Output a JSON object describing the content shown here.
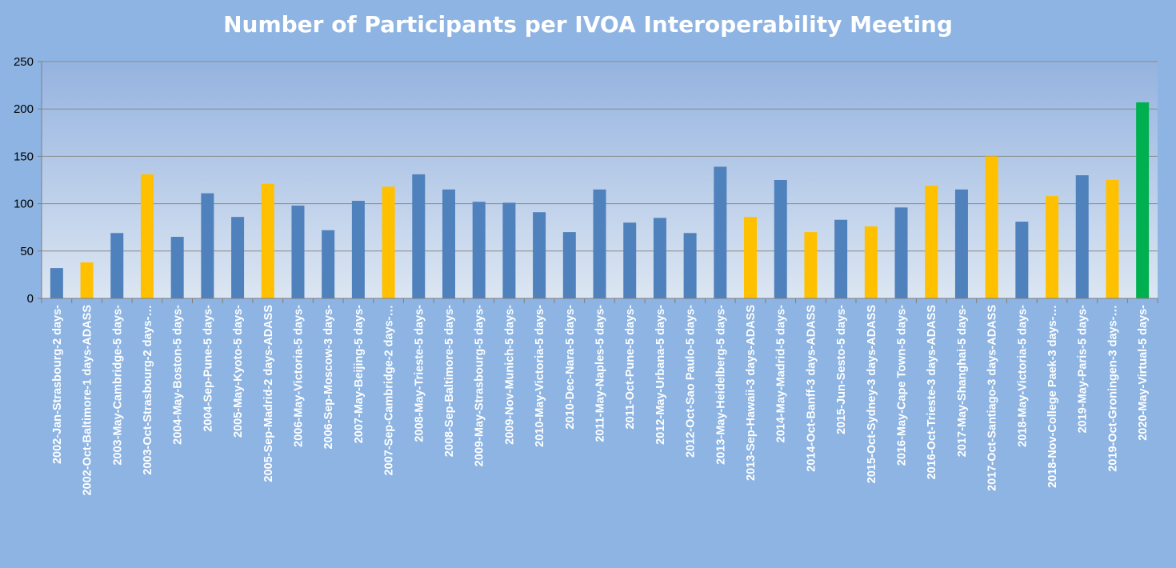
{
  "chart_data": {
    "type": "bar",
    "title": "Number of Participants per IVOA Interoperability Meeting",
    "xlabel": "",
    "ylabel": "",
    "ylim": [
      0,
      250
    ],
    "yticks": [
      0,
      50,
      100,
      150,
      200,
      250
    ],
    "grid": true,
    "legend": "none",
    "categories": [
      "2002-Jan-Strasbourg-2 days-",
      "2002-Oct-Baltimore-1 days-ADASS",
      "2003-May-Cambridge-5 days-",
      "2003-Oct-Strasbourg-2 days-…",
      "2004-May-Boston-5 days-",
      "2004-Sep-Pune-5 days-",
      "2005-May-Kyoto-5 days-",
      "2005-Sep-Madrid-2 days-ADASS",
      "2006-May-Victoria-5 days-",
      "2006-Sep-Moscow-3 days-",
      "2007-May-Beijing-5 days-",
      "2007-Sep-Cambridge-2 days-…",
      "2008-May-Trieste-5 days-",
      "2008-Sep-Baltimore-5 days-",
      "2009-May-Strasbourg-5 days-",
      "2009-Nov-Munich-5 days-",
      "2010-May-Victoria-5 days-",
      "2010-Dec-Nara-5 days-",
      "2011-May-Naples-5 days-",
      "2011-Oct-Pune-5 days-",
      "2012-May-Urbana-5 days-",
      "2012-Oct-Sao Paulo-5 days-",
      "2013-May-Heidelberg-5 days-",
      "2013-Sep-Hawaii-3 days-ADASS",
      "2014-May-Madrid-5 days-",
      "2014-Oct-Banff-3 days-ADASS",
      "2015-Jun-Sesto-5 days-",
      "2015-Oct-Sydney-3 days-ADASS",
      "2016-May-Cape Town-5 days-",
      "2016-Oct-Trieste-3 days-ADASS",
      "2017-May-Shanghai-5 days-",
      "2017-Oct-Santiago-3 days-ADASS",
      "2018-May-Victoria-5 days-",
      "2018-Nov-College Paek-3 days-…",
      "2019-May-Paris-5 days-",
      "2019-Oct-Groningen-3 days-…",
      "2020-May-Virtual-5 days-"
    ],
    "values": [
      32,
      38,
      69,
      131,
      65,
      111,
      86,
      121,
      98,
      72,
      103,
      118,
      131,
      115,
      102,
      101,
      91,
      70,
      115,
      80,
      85,
      69,
      139,
      86,
      125,
      70,
      83,
      76,
      96,
      119,
      115,
      150,
      81,
      108,
      130,
      125,
      207
    ],
    "bar_colors": [
      "#4f81bd",
      "#ffc000",
      "#4f81bd",
      "#ffc000",
      "#4f81bd",
      "#4f81bd",
      "#4f81bd",
      "#ffc000",
      "#4f81bd",
      "#4f81bd",
      "#4f81bd",
      "#ffc000",
      "#4f81bd",
      "#4f81bd",
      "#4f81bd",
      "#4f81bd",
      "#4f81bd",
      "#4f81bd",
      "#4f81bd",
      "#4f81bd",
      "#4f81bd",
      "#4f81bd",
      "#4f81bd",
      "#ffc000",
      "#4f81bd",
      "#ffc000",
      "#4f81bd",
      "#ffc000",
      "#4f81bd",
      "#ffc000",
      "#4f81bd",
      "#ffc000",
      "#4f81bd",
      "#ffc000",
      "#4f81bd",
      "#ffc000",
      "#00b050"
    ]
  },
  "colors": {
    "background": "#8db4e2",
    "plot_top": "#95b3e0",
    "plot_bottom": "#dce6f2",
    "gridline": "#8a8a8a"
  }
}
